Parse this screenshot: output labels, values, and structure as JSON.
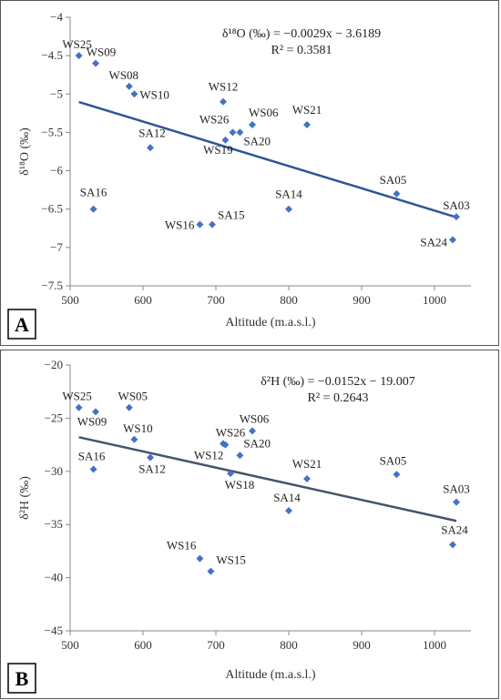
{
  "chart_data": [
    {
      "type": "scatter",
      "panel_label": "A",
      "xlabel": "Altitude (m.a.s.l.)",
      "ylabel": "δ¹⁸O (‰)",
      "xlim": [
        500,
        1050
      ],
      "ylim": [
        -7.5,
        -4
      ],
      "x_ticks": [
        500,
        600,
        700,
        800,
        900,
        1000
      ],
      "y_ticks": [
        -4,
        -4.5,
        -5,
        -5.5,
        -6,
        -6.5,
        -7,
        -7.5
      ],
      "equation": "δ¹⁸O (‰) = −0.0029x − 3.6189",
      "r2": "R² = 0.3581",
      "trendline": {
        "slope": -0.0029,
        "intercept": -3.6189,
        "x_range": [
          512,
          1030
        ]
      },
      "marker_color": "#4472C4",
      "line_color": "#2F5597",
      "points": [
        {
          "label": "WS25",
          "x": 512,
          "y": -4.5
        },
        {
          "label": "WS09",
          "x": 535,
          "y": -4.6
        },
        {
          "label": "WS08",
          "x": 581,
          "y": -4.9
        },
        {
          "label": "WS10",
          "x": 588,
          "y": -5.0
        },
        {
          "label": "SA12",
          "x": 610,
          "y": -5.7
        },
        {
          "label": "WS12",
          "x": 710,
          "y": -5.1
        },
        {
          "label": "WS26",
          "x": 723,
          "y": -5.5
        },
        {
          "label": "SA20",
          "x": 733,
          "y": -5.5
        },
        {
          "label": "WS19",
          "x": 713,
          "y": -5.6
        },
        {
          "label": "WS06",
          "x": 750,
          "y": -5.4
        },
        {
          "label": "WS21",
          "x": 825,
          "y": -5.4
        },
        {
          "label": "SA16",
          "x": 532,
          "y": -6.5
        },
        {
          "label": "WS16",
          "x": 678,
          "y": -6.7
        },
        {
          "label": "SA15",
          "x": 695,
          "y": -6.7
        },
        {
          "label": "SA14",
          "x": 800,
          "y": -6.5
        },
        {
          "label": "SA05",
          "x": 948,
          "y": -6.3
        },
        {
          "label": "SA03",
          "x": 1030,
          "y": -6.6
        },
        {
          "label": "SA24",
          "x": 1025,
          "y": -6.9
        }
      ]
    },
    {
      "type": "scatter",
      "panel_label": "B",
      "xlabel": "Altitude (m.a.s.l.)",
      "ylabel": "δ²H (‰)",
      "xlim": [
        500,
        1050
      ],
      "ylim": [
        -45,
        -20
      ],
      "x_ticks": [
        500,
        600,
        700,
        800,
        900,
        1000
      ],
      "y_ticks": [
        -20,
        -25,
        -30,
        -35,
        -40,
        -45
      ],
      "equation": "δ²H (‰) = −0.0152x − 19.007",
      "r2": "R² = 0.2643",
      "trendline": {
        "slope": -0.0152,
        "intercept": -19.007,
        "x_range": [
          512,
          1030
        ]
      },
      "marker_color": "#4472C4",
      "line_color": "#44546A",
      "points": [
        {
          "label": "WS25",
          "x": 512,
          "y": -24.0
        },
        {
          "label": "WS09",
          "x": 535,
          "y": -24.4
        },
        {
          "label": "WS05",
          "x": 581,
          "y": -24.0
        },
        {
          "label": "WS10",
          "x": 588,
          "y": -27.0
        },
        {
          "label": "SA16",
          "x": 532,
          "y": -29.8
        },
        {
          "label": "SA12",
          "x": 610,
          "y": -28.7
        },
        {
          "label": "WS26",
          "x": 710,
          "y": -27.4
        },
        {
          "label": "WS12",
          "x": 713,
          "y": -27.5
        },
        {
          "label": "WS06",
          "x": 750,
          "y": -26.2
        },
        {
          "label": "SA20",
          "x": 733,
          "y": -28.5
        },
        {
          "label": "WS18",
          "x": 720,
          "y": -30.2
        },
        {
          "label": "WS21",
          "x": 825,
          "y": -30.7
        },
        {
          "label": "SA14",
          "x": 800,
          "y": -33.7
        },
        {
          "label": "SA05",
          "x": 948,
          "y": -30.3
        },
        {
          "label": "SA03",
          "x": 1030,
          "y": -32.9
        },
        {
          "label": "SA24",
          "x": 1025,
          "y": -36.9
        },
        {
          "label": "WS16",
          "x": 678,
          "y": -38.2
        },
        {
          "label": "WS15",
          "x": 693,
          "y": -39.4
        }
      ]
    }
  ]
}
